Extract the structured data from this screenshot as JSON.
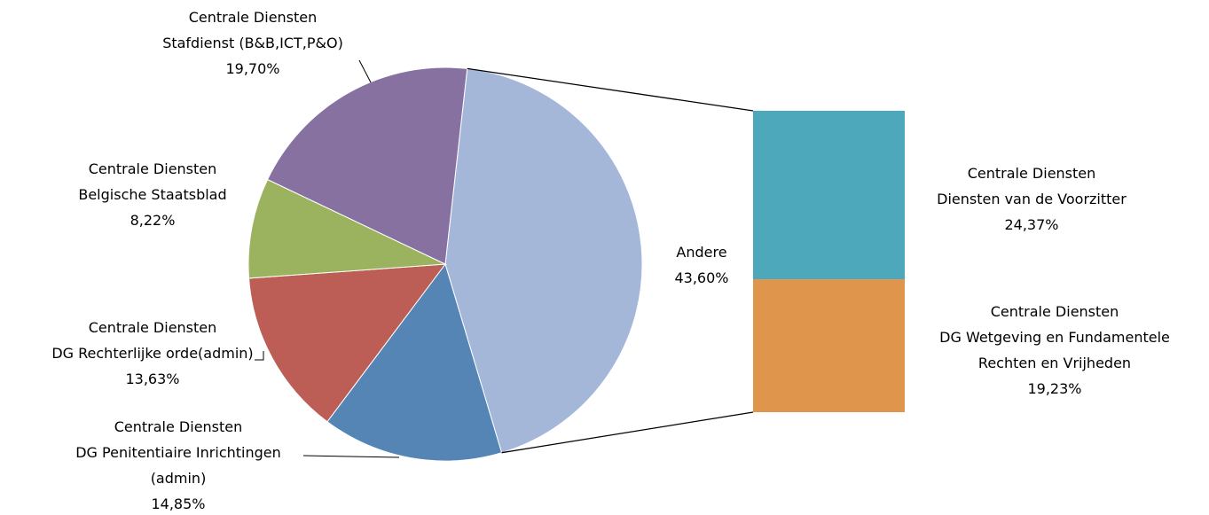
{
  "chart_data": {
    "type": "pie",
    "subtype": "bar-of-pie",
    "slices": [
      {
        "id": "andere",
        "label_lines": [
          "Andere",
          "43,60%"
        ],
        "value": 43.6,
        "color": "#A4B7D8"
      },
      {
        "id": "penitentiaire",
        "label_lines": [
          "Centrale Diensten",
          "DG Penitentiaire Inrichtingen",
          "(admin)",
          "14,85%"
        ],
        "value": 14.85,
        "color": "#5585B5"
      },
      {
        "id": "rechterlijke",
        "label_lines": [
          "Centrale Diensten",
          "DG Rechterlijke orde(admin)",
          "13,63%"
        ],
        "value": 13.63,
        "color": "#BC5E55"
      },
      {
        "id": "staatsblad",
        "label_lines": [
          "Centrale Diensten",
          "Belgische Staatsblad",
          "8,22%"
        ],
        "value": 8.22,
        "color": "#9BB25F"
      },
      {
        "id": "stafdienst",
        "label_lines": [
          "Centrale Diensten",
          "Stafdienst (B&B,ICT,P&O)",
          "19,70%"
        ],
        "value": 19.7,
        "color": "#8671A0"
      }
    ],
    "breakout": {
      "from_slice": "andere",
      "segments": [
        {
          "id": "voorzitter",
          "label_lines": [
            "Centrale Diensten",
            "Diensten van de  Voorzitter",
            "24,37%"
          ],
          "value": 24.37,
          "color": "#4EA8BC"
        },
        {
          "id": "wetgeving",
          "label_lines": [
            "Centrale Diensten",
            "DG Wetgeving en Fundamentele",
            "Rechten en Vrijheden",
            "19,23%"
          ],
          "value": 19.23,
          "color": "#E0954D"
        }
      ]
    }
  }
}
